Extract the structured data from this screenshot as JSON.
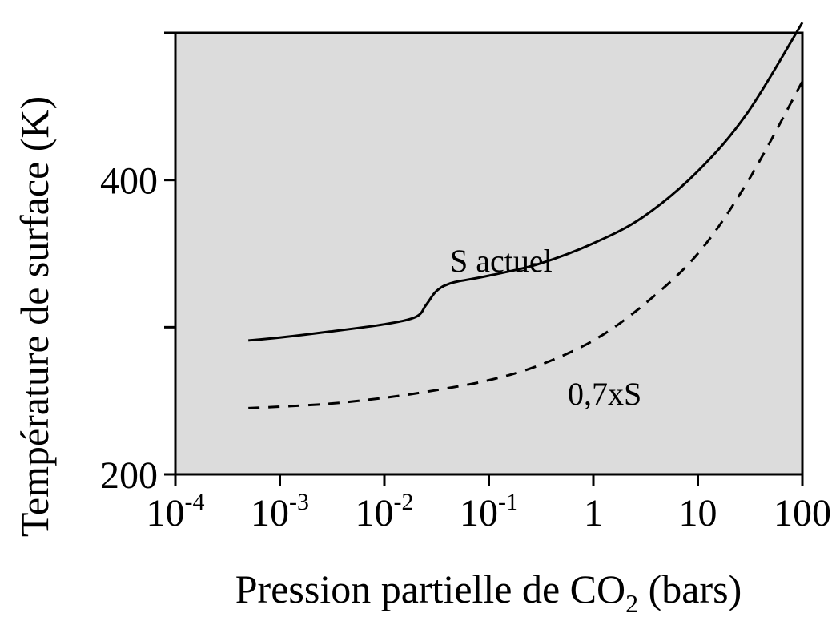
{
  "chart_data": {
    "type": "line",
    "title": "",
    "xlabel_prefix": "Pression partielle de CO",
    "xlabel_sub": "2",
    "xlabel_suffix": " (bars)",
    "ylabel": "Température de surface (K)",
    "xscale": "log",
    "xlim": [
      0.0001,
      100
    ],
    "ylim": [
      200,
      500
    ],
    "grid": false,
    "x_ticks": [
      {
        "value": 0.0001,
        "base": "10",
        "exp": "-4"
      },
      {
        "value": 0.001,
        "base": "10",
        "exp": "-3"
      },
      {
        "value": 0.01,
        "base": "10",
        "exp": "-2"
      },
      {
        "value": 0.1,
        "base": "10",
        "exp": "-1"
      },
      {
        "value": 1,
        "base": "1",
        "exp": ""
      },
      {
        "value": 10,
        "base": "10",
        "exp": ""
      },
      {
        "value": 100,
        "base": "100",
        "exp": ""
      }
    ],
    "y_ticks": [
      {
        "value": 200,
        "label": "200"
      },
      {
        "value": 300,
        "label": ""
      },
      {
        "value": 400,
        "label": "400"
      },
      {
        "value": 500,
        "label": ""
      }
    ],
    "series": [
      {
        "name": "S actuel",
        "style": "solid",
        "color": "#000000",
        "x": [
          0.0005,
          0.001,
          0.003,
          0.01,
          0.02,
          0.025,
          0.03,
          0.035,
          0.04,
          0.05,
          0.1,
          0.3,
          1,
          3,
          10,
          30,
          100
        ],
        "y": [
          291,
          293,
          297,
          302,
          307,
          315,
          323,
          327,
          329,
          331,
          335,
          343,
          357,
          375,
          406,
          446,
          507
        ]
      },
      {
        "name": "0,7xS",
        "style": "dashed",
        "color": "#000000",
        "x": [
          0.0005,
          0.001,
          0.003,
          0.01,
          0.03,
          0.1,
          0.3,
          1,
          3,
          10,
          30,
          100
        ],
        "y": [
          245,
          246,
          248,
          252,
          257,
          264,
          274,
          291,
          315,
          350,
          399,
          467
        ]
      }
    ]
  }
}
